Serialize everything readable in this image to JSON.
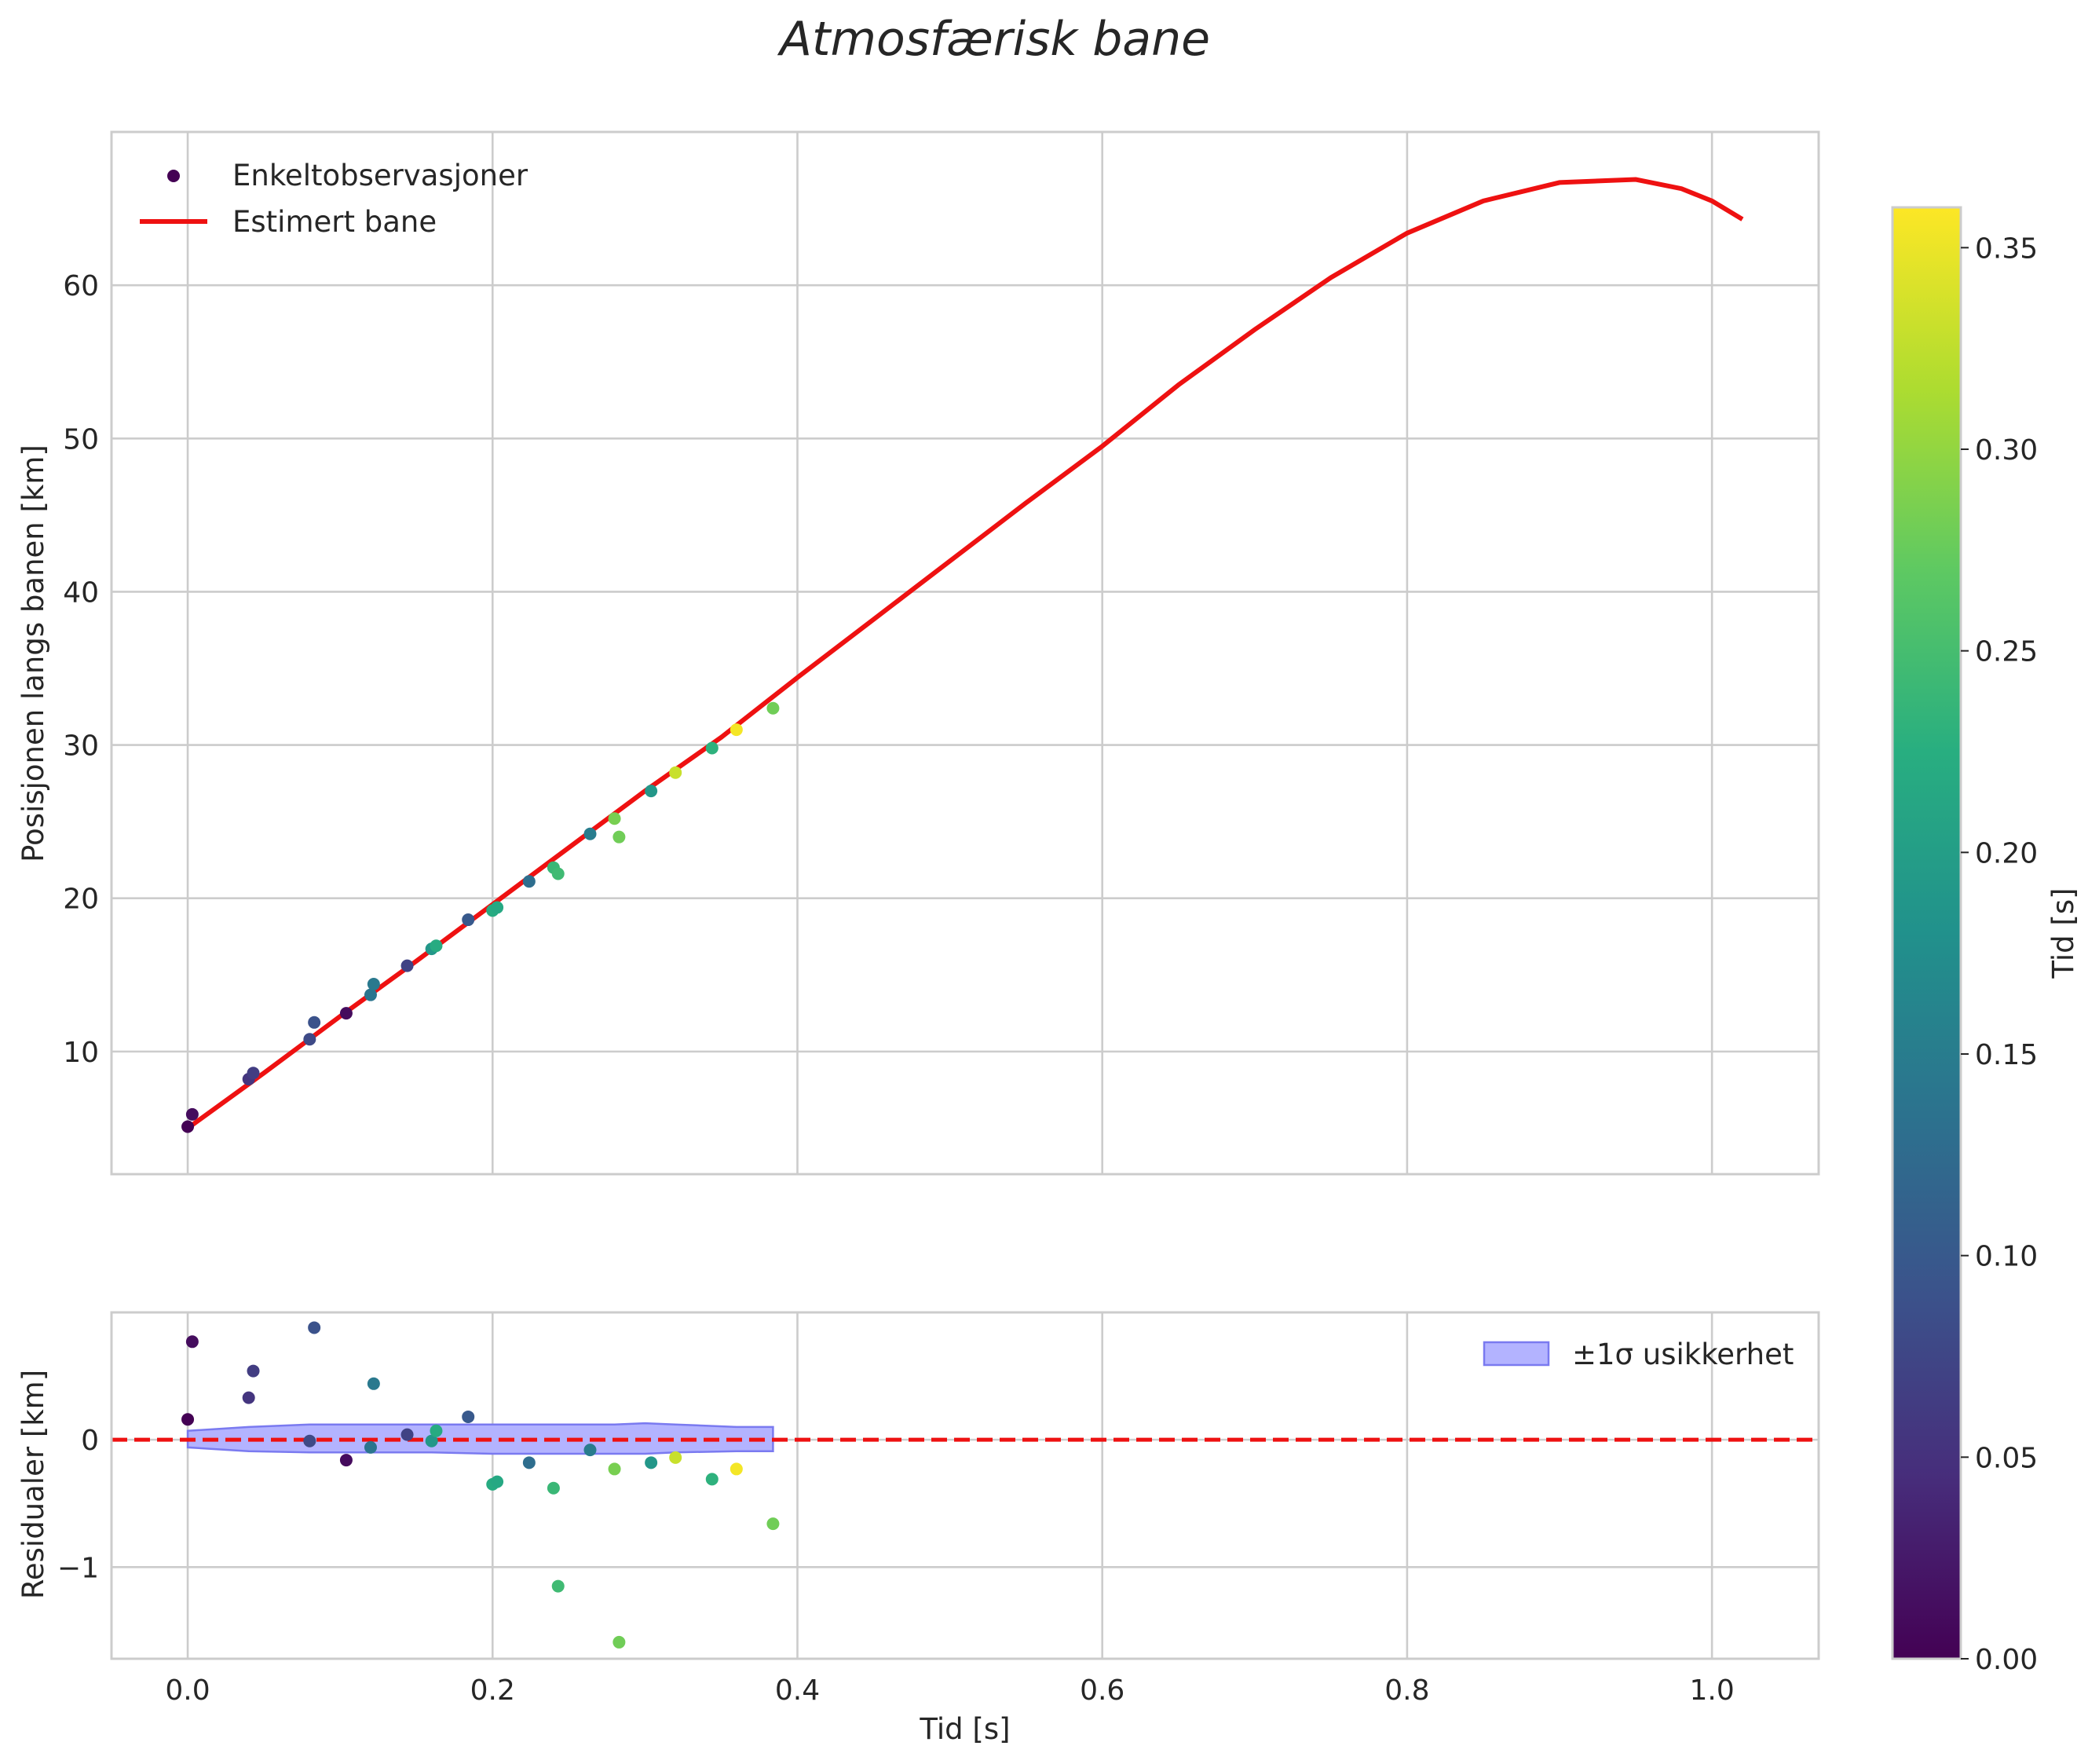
{
  "title": "Atmosfærisk bane",
  "chart_data": [
    {
      "type": "scatter",
      "name": "trajectory",
      "ylabel": "Posisjonen langs banen [km]",
      "xlabel": "",
      "xlim": [
        -0.05,
        1.07
      ],
      "ylim": [
        2,
        70
      ],
      "xticks": [
        0.0,
        0.2,
        0.4,
        0.6,
        0.8,
        1.0
      ],
      "yticks": [
        10,
        20,
        30,
        40,
        50,
        60
      ],
      "ytick_labels": [
        "10",
        "20",
        "30",
        "40",
        "50",
        "60"
      ],
      "grid": true,
      "legend": {
        "position": "upper-left",
        "entries": [
          "Enkeltobservasjoner",
          "Estimert bane"
        ]
      },
      "series": [
        {
          "name": "Enkeltobservasjoner",
          "kind": "scatter",
          "color_by": "Tid [s]",
          "points": [
            {
              "x": 0.0,
              "y": 5.1,
              "c": 0.0
            },
            {
              "x": 0.003,
              "y": 5.9,
              "c": 0.012
            },
            {
              "x": 0.04,
              "y": 8.2,
              "c": 0.055
            },
            {
              "x": 0.043,
              "y": 8.6,
              "c": 0.065
            },
            {
              "x": 0.08,
              "y": 10.8,
              "c": 0.08
            },
            {
              "x": 0.083,
              "y": 11.9,
              "c": 0.09
            },
            {
              "x": 0.104,
              "y": 12.5,
              "c": 0.01
            },
            {
              "x": 0.12,
              "y": 13.7,
              "c": 0.14
            },
            {
              "x": 0.122,
              "y": 14.4,
              "c": 0.145
            },
            {
              "x": 0.144,
              "y": 15.6,
              "c": 0.07
            },
            {
              "x": 0.16,
              "y": 16.7,
              "c": 0.19
            },
            {
              "x": 0.163,
              "y": 16.9,
              "c": 0.22
            },
            {
              "x": 0.184,
              "y": 18.6,
              "c": 0.1
            },
            {
              "x": 0.2,
              "y": 19.2,
              "c": 0.22
            },
            {
              "x": 0.203,
              "y": 19.4,
              "c": 0.215
            },
            {
              "x": 0.224,
              "y": 21.1,
              "c": 0.13
            },
            {
              "x": 0.24,
              "y": 22.0,
              "c": 0.24
            },
            {
              "x": 0.243,
              "y": 21.6,
              "c": 0.245
            },
            {
              "x": 0.264,
              "y": 24.2,
              "c": 0.15
            },
            {
              "x": 0.28,
              "y": 25.2,
              "c": 0.285
            },
            {
              "x": 0.283,
              "y": 24.0,
              "c": 0.28
            },
            {
              "x": 0.304,
              "y": 27.0,
              "c": 0.19
            },
            {
              "x": 0.32,
              "y": 28.2,
              "c": 0.33
            },
            {
              "x": 0.344,
              "y": 29.8,
              "c": 0.23
            },
            {
              "x": 0.36,
              "y": 31.0,
              "c": 0.355
            },
            {
              "x": 0.384,
              "y": 32.4,
              "c": 0.28
            }
          ]
        },
        {
          "name": "Estimert bane",
          "kind": "line",
          "color": "#ee1111",
          "x": [
            0.0,
            0.05,
            0.1,
            0.15,
            0.2,
            0.25,
            0.3,
            0.35,
            0.4,
            0.45,
            0.5,
            0.55,
            0.6,
            0.65,
            0.7,
            0.75,
            0.8,
            0.85,
            0.9,
            0.95,
            0.98,
            1.0,
            1.02
          ],
          "y": [
            5.0,
            8.6,
            12.3,
            15.9,
            19.6,
            23.3,
            27.0,
            30.5,
            34.4,
            38.2,
            42.0,
            45.8,
            49.5,
            53.5,
            57.1,
            60.5,
            63.4,
            65.5,
            66.7,
            66.9,
            66.3,
            65.5,
            64.3
          ]
        }
      ]
    },
    {
      "type": "scatter",
      "name": "residuals",
      "ylabel": "Residualer [km]",
      "xlabel": "Tid [s]",
      "xlim": [
        -0.05,
        1.07
      ],
      "ylim": [
        -1.72,
        1.0
      ],
      "xticks": [
        0.0,
        0.2,
        0.4,
        0.6,
        0.8,
        1.0
      ],
      "xtick_labels": [
        "0.0",
        "0.2",
        "0.4",
        "0.6",
        "0.8",
        "1.0"
      ],
      "yticks": [
        -1,
        0
      ],
      "ytick_labels": [
        "−1",
        "0"
      ],
      "grid": true,
      "legend": {
        "position": "upper-right",
        "entries": [
          "±1σ usikkerhet"
        ]
      },
      "band": {
        "name": "±1σ usikkerhet",
        "color": "#b3b3ff",
        "x": [
          0.0,
          0.04,
          0.08,
          0.12,
          0.16,
          0.2,
          0.24,
          0.28,
          0.3,
          0.32,
          0.36,
          0.384
        ],
        "upper": [
          0.07,
          0.1,
          0.12,
          0.12,
          0.12,
          0.12,
          0.12,
          0.12,
          0.13,
          0.12,
          0.1,
          0.1
        ],
        "lower": [
          -0.06,
          -0.09,
          -0.1,
          -0.1,
          -0.1,
          -0.11,
          -0.11,
          -0.11,
          -0.11,
          -0.1,
          -0.09,
          -0.09
        ]
      },
      "zero_line": {
        "y": 0,
        "color": "#ee1111",
        "style": "dashed"
      },
      "points": [
        {
          "x": 0.0,
          "y": 0.16,
          "c": 0.0
        },
        {
          "x": 0.003,
          "y": 0.77,
          "c": 0.012
        },
        {
          "x": 0.04,
          "y": 0.33,
          "c": 0.055
        },
        {
          "x": 0.043,
          "y": 0.54,
          "c": 0.065
        },
        {
          "x": 0.08,
          "y": -0.01,
          "c": 0.08
        },
        {
          "x": 0.083,
          "y": 0.88,
          "c": 0.09
        },
        {
          "x": 0.104,
          "y": -0.16,
          "c": 0.01
        },
        {
          "x": 0.12,
          "y": -0.06,
          "c": 0.14
        },
        {
          "x": 0.122,
          "y": 0.44,
          "c": 0.145
        },
        {
          "x": 0.144,
          "y": 0.04,
          "c": 0.07
        },
        {
          "x": 0.16,
          "y": -0.01,
          "c": 0.19
        },
        {
          "x": 0.163,
          "y": 0.07,
          "c": 0.22
        },
        {
          "x": 0.184,
          "y": 0.18,
          "c": 0.1
        },
        {
          "x": 0.2,
          "y": -0.35,
          "c": 0.22
        },
        {
          "x": 0.203,
          "y": -0.33,
          "c": 0.215
        },
        {
          "x": 0.224,
          "y": -0.18,
          "c": 0.13
        },
        {
          "x": 0.24,
          "y": -0.38,
          "c": 0.24
        },
        {
          "x": 0.243,
          "y": -1.15,
          "c": 0.245
        },
        {
          "x": 0.264,
          "y": -0.08,
          "c": 0.15
        },
        {
          "x": 0.28,
          "y": -0.23,
          "c": 0.285
        },
        {
          "x": 0.283,
          "y": -1.59,
          "c": 0.28
        },
        {
          "x": 0.304,
          "y": -0.18,
          "c": 0.19
        },
        {
          "x": 0.32,
          "y": -0.14,
          "c": 0.33
        },
        {
          "x": 0.344,
          "y": -0.31,
          "c": 0.23
        },
        {
          "x": 0.36,
          "y": -0.23,
          "c": 0.355
        },
        {
          "x": 0.384,
          "y": -0.66,
          "c": 0.28
        }
      ]
    }
  ],
  "colorbar": {
    "label": "Tid [s]",
    "colormap": "viridis",
    "min": 0.0,
    "max": 0.36,
    "ticks": [
      0.0,
      0.05,
      0.1,
      0.15,
      0.2,
      0.25,
      0.3,
      0.35
    ],
    "tick_labels": [
      "0.00",
      "0.05",
      "0.10",
      "0.15",
      "0.20",
      "0.25",
      "0.30",
      "0.35"
    ]
  }
}
